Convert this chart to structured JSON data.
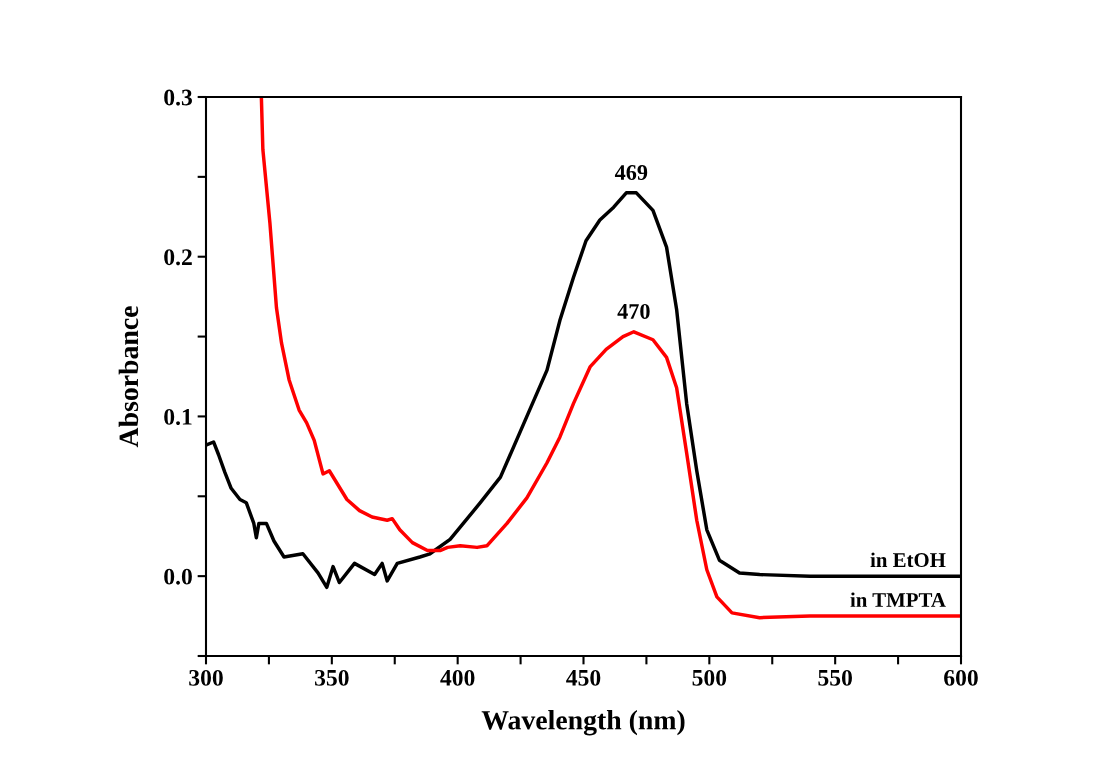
{
  "chart_data": {
    "type": "line",
    "xlabel": "Wavelength (nm)",
    "ylabel": "Absorbance",
    "xlim": [
      300,
      600
    ],
    "ylim": [
      -0.05,
      0.3
    ],
    "xticks": [
      300,
      {
        "value": 325,
        "label": null
      },
      350,
      {
        "value": 375,
        "label": null
      },
      400,
      {
        "value": 425,
        "label": null
      },
      450,
      {
        "value": 475,
        "label": null
      },
      500,
      {
        "value": 525,
        "label": null
      },
      550,
      {
        "value": 575,
        "label": null
      },
      600
    ],
    "yticks": [
      {
        "value": -0.05,
        "label": null
      },
      {
        "value": 0,
        "label": "0.0"
      },
      {
        "value": 0.05,
        "label": null
      },
      0.1,
      {
        "value": 0.15,
        "label": null
      },
      0.2,
      {
        "value": 0.25,
        "label": null
      },
      0.3
    ],
    "grid": false,
    "legend": false,
    "marker": "none",
    "line_style": "solid",
    "annotations": [
      {
        "text": "469",
        "x": 469,
        "y": 0.24
      },
      {
        "text": "470",
        "x": 470,
        "y": 0.153
      }
    ],
    "series": [
      {
        "name": "in EtOH",
        "color": "#000000",
        "x": [
          300,
          303,
          305,
          307.5,
          310,
          313.5,
          316,
          319,
          320,
          321,
          324,
          327,
          331,
          338.5,
          344.5,
          348,
          350.5,
          353,
          359,
          367,
          370,
          372,
          376,
          385,
          389,
          397,
          409,
          417,
          427.5,
          435.5,
          440.6,
          446,
          451,
          456.5,
          462,
          467,
          469,
          471,
          477.6,
          483,
          487,
          491,
          495,
          499,
          504,
          512,
          520,
          540,
          560,
          580,
          600
        ],
        "values": [
          0.082,
          0.084,
          0.076,
          0.065,
          0.055,
          0.048,
          0.046,
          0.033,
          0.024,
          0.033,
          0.033,
          0.022,
          0.012,
          0.014,
          0.002,
          -0.007,
          0.006,
          -0.004,
          0.008,
          0.001,
          0.008,
          -0.003,
          0.008,
          0.012,
          0.014,
          0.023,
          0.046,
          0.062,
          0.1,
          0.129,
          0.16,
          0.187,
          0.21,
          0.223,
          0.231,
          0.24,
          0.24,
          0.24,
          0.229,
          0.206,
          0.167,
          0.108,
          0.066,
          0.029,
          0.01,
          0.002,
          0.001,
          0.0,
          0.0,
          0.0,
          0.0
        ]
      },
      {
        "name": "in TMPTA",
        "color": "#ff0000",
        "x": [
          322,
          322.6,
          325.4,
          328,
          330,
          333,
          337,
          340,
          343,
          346.5,
          349,
          356,
          361,
          366,
          372,
          374,
          377,
          382,
          388,
          393,
          396,
          401,
          407.7,
          411.6,
          419.6,
          427.5,
          435.5,
          440.6,
          446,
          452.6,
          459,
          465.7,
          470,
          477.6,
          483,
          487,
          491,
          495,
          499,
          503,
          509,
          520,
          540,
          560,
          580,
          600
        ],
        "values": [
          0.3,
          0.267,
          0.221,
          0.168,
          0.146,
          0.123,
          0.104,
          0.096,
          0.085,
          0.064,
          0.066,
          0.048,
          0.041,
          0.037,
          0.035,
          0.036,
          0.029,
          0.021,
          0.016,
          0.016,
          0.018,
          0.019,
          0.018,
          0.019,
          0.033,
          0.049,
          0.071,
          0.087,
          0.108,
          0.131,
          0.142,
          0.15,
          0.153,
          0.148,
          0.137,
          0.118,
          0.077,
          0.035,
          0.004,
          -0.013,
          -0.023,
          -0.026,
          -0.025,
          -0.025,
          -0.025,
          -0.025
        ]
      }
    ]
  }
}
